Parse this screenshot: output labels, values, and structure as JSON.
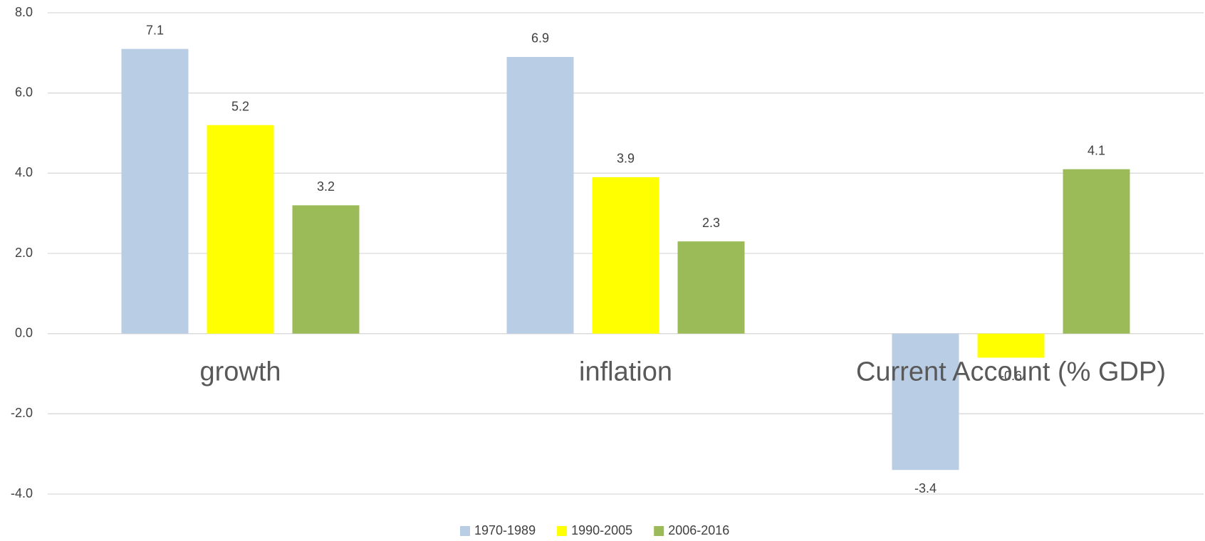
{
  "chart_data": {
    "type": "bar",
    "categories": [
      "growth",
      "inflation",
      "Current Account (% GDP)"
    ],
    "series": [
      {
        "name": "1970-1989",
        "color": "#b9cde5",
        "values": [
          7.1,
          6.9,
          -3.4
        ]
      },
      {
        "name": "1990-2005",
        "color": "#ffff00",
        "values": [
          5.2,
          3.9,
          -0.6
        ]
      },
      {
        "name": "2006-2016",
        "color": "#9bbb59",
        "values": [
          3.2,
          2.3,
          4.1
        ]
      }
    ],
    "ylim": [
      -4,
      8
    ],
    "yticks": [
      {
        "value": -4,
        "label": "-4.0"
      },
      {
        "value": -2,
        "label": "-2.0"
      },
      {
        "value": 0,
        "label": "0.0"
      },
      {
        "value": 2,
        "label": "2.0"
      },
      {
        "value": 4,
        "label": "4.0"
      },
      {
        "value": 6,
        "label": "6.0"
      },
      {
        "value": 8,
        "label": "8.0"
      }
    ],
    "grid": true,
    "legend": "bottom"
  }
}
